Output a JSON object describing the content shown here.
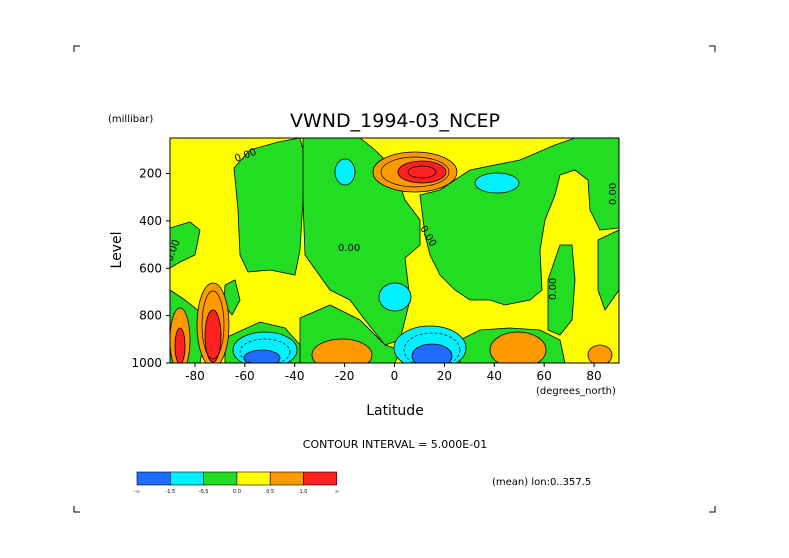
{
  "chart_data": {
    "type": "heatmap",
    "title": "VWND_1994-03_NCEP",
    "xlabel": "Latitude",
    "ylabel": "Level",
    "x_unit": "(degrees_north)",
    "y_unit": "(millibar)",
    "xlim": [
      -90,
      90
    ],
    "ylim": [
      1000,
      50
    ],
    "y_reversed": true,
    "x_ticks": [
      "-80",
      "-60",
      "-40",
      "-20",
      "0",
      "20",
      "40",
      "60",
      "80"
    ],
    "x_tick_values": [
      -80,
      -60,
      -40,
      -20,
      0,
      20,
      40,
      60,
      80
    ],
    "y_ticks": [
      "200",
      "400",
      "600",
      "800",
      "1000"
    ],
    "y_tick_values": [
      200,
      400,
      600,
      800,
      1000
    ],
    "contour_interval": "CONTOUR INTERVAL = 5.000E-01",
    "average_note": "(mean) lon:0..357.5",
    "zero_contour_label": "0.00",
    "colorbar": {
      "labels": [
        "-∞",
        "-1.5",
        "-0.5",
        "0.0",
        "0.5",
        "1.0",
        "∞"
      ],
      "colors": [
        "#1f6dff",
        "#00f0ff",
        "#22dd22",
        "#ffff00",
        "#ff9900",
        "#ff2020",
        "#c00000"
      ]
    },
    "features": [
      {
        "name": "jet maximum near 10N 150mb",
        "lat": 12,
        "level": 150,
        "value": 2.5
      },
      {
        "name": "positive cell near 80S surface",
        "lat": -78,
        "level": 870,
        "value": 1.5
      },
      {
        "name": "positive cell near 88S surface",
        "lat": -88,
        "level": 900,
        "value": 1.2
      },
      {
        "name": "negative cell near 55S surface",
        "lat": -55,
        "level": 960,
        "value": -1.8
      },
      {
        "name": "negative cell near 12N surface",
        "lat": 12,
        "level": 960,
        "value": -1.8
      },
      {
        "name": "positive cell near 22S surface",
        "lat": -22,
        "level": 960,
        "value": 0.8
      },
      {
        "name": "positive cell near 55N surface",
        "lat": 55,
        "level": 950,
        "value": 0.7
      },
      {
        "name": "positive cell near 82N surface",
        "lat": 82,
        "level": 960,
        "value": 0.6
      }
    ]
  }
}
